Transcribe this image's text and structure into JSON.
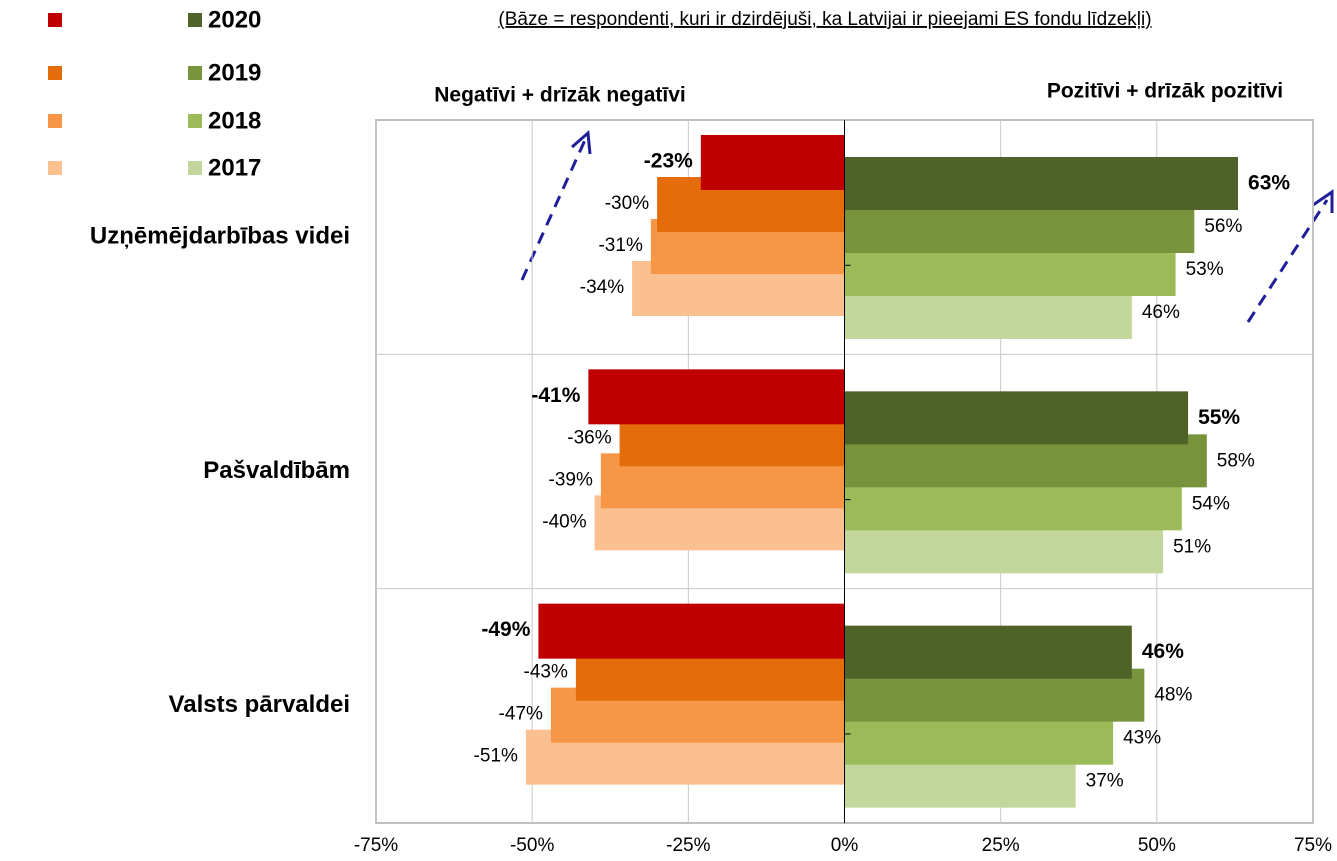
{
  "chart_data": {
    "type": "diverging-bar",
    "subtitle": "(Bāze = respondenti, kuri ir dzirdējuši, ka Latvijai ir pieejami ES fondu līdzekļi)",
    "negative_heading": "Negatīvi + drīzāk negatīvi",
    "positive_heading": "Pozitīvi + drīzāk pozitīvi",
    "categories": [
      "Uzņēmējdarbības videi",
      "Pašvaldībām",
      "Valsts pārvaldei"
    ],
    "series": [
      {
        "name": "2020",
        "color": "#4f6228",
        "negative_color": "#c00000",
        "values": [
          63,
          55,
          46
        ],
        "value_labels": [
          "63%",
          "55%",
          "46%"
        ],
        "negative_values": [
          -23,
          -41,
          -49
        ],
        "negative_value_labels": [
          "-23%",
          "-41%",
          "-49%"
        ]
      },
      {
        "name": "2019",
        "color": "#77933c",
        "negative_color": "#e46c0a",
        "values": [
          56,
          58,
          48
        ],
        "value_labels": [
          "56%",
          "58%",
          "48%"
        ],
        "negative_values": [
          -30,
          -36,
          -43
        ],
        "negative_value_labels": [
          "-30%",
          "-36%",
          "-43%"
        ]
      },
      {
        "name": "2018",
        "color": "#9bbb59",
        "negative_color": "#f79646",
        "values": [
          53,
          54,
          43
        ],
        "value_labels": [
          "53%",
          "54%",
          "43%"
        ],
        "negative_values": [
          -31,
          -39,
          -47
        ],
        "negative_value_labels": [
          "-31%",
          "-39%",
          "-47%"
        ]
      },
      {
        "name": "2017",
        "color": "#c3d69b",
        "negative_color": "#fac090",
        "values": [
          46,
          51,
          37
        ],
        "value_labels": [
          "46%",
          "51%",
          "37%"
        ],
        "negative_values": [
          -34,
          -40,
          -51
        ],
        "negative_value_labels": [
          "-34%",
          "-40%",
          "-51%"
        ]
      }
    ],
    "xlim": [
      -75,
      75
    ],
    "xticks": [
      {
        "value": -75,
        "label": "-75%"
      },
      {
        "value": -50,
        "label": "-50%"
      },
      {
        "value": -25,
        "label": "-25%"
      },
      {
        "value": 0,
        "label": "0%"
      },
      {
        "value": 25,
        "label": "25%"
      },
      {
        "value": 50,
        "label": "50%"
      },
      {
        "value": 75,
        "label": "75%"
      }
    ],
    "grid": true
  }
}
